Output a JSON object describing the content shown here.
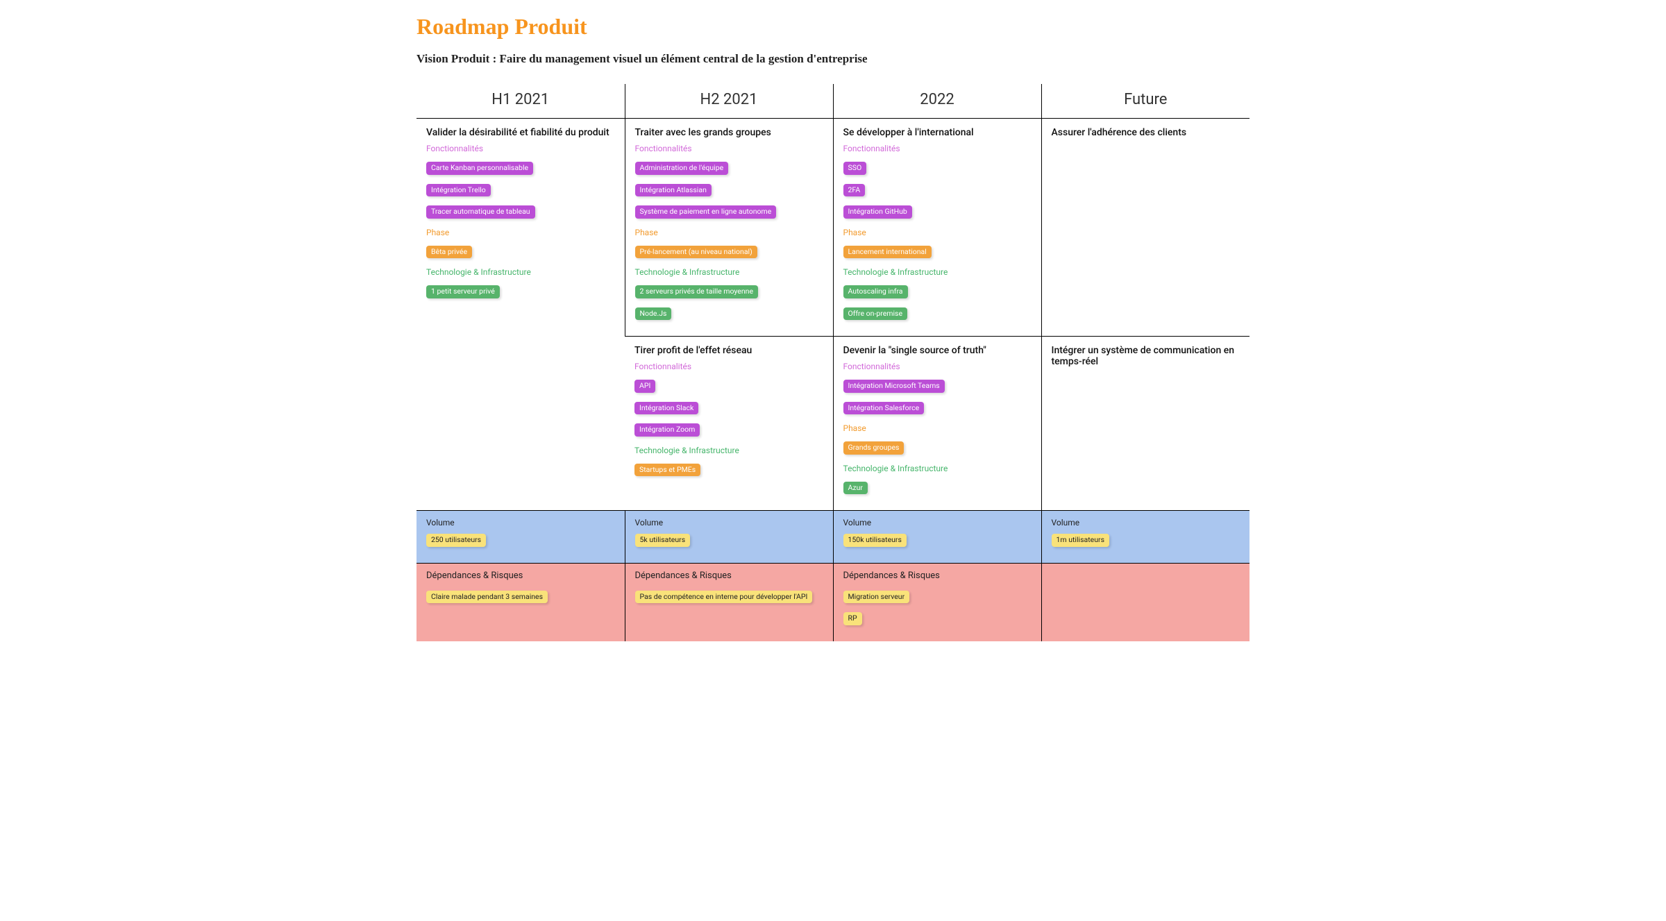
{
  "title": "Roadmap Produit",
  "vision": "Vision Produit : Faire du management visuel un élément central de la gestion d'entreprise",
  "colors": {
    "title": "#f7941d",
    "section_fonctionnalites": "#d26ad9",
    "section_phase": "#f29b2e",
    "section_tech": "#46b56b",
    "pill_purple": "#bb4ed6",
    "pill_orange": "#f2a23b",
    "pill_green": "#57b36b",
    "pill_yellow": "#f9e27a",
    "row_volume_bg": "#aac6ef",
    "row_deps_bg": "#f5a7a3"
  },
  "columns": [
    "H1 2021",
    "H2 2021",
    "2022",
    "Future"
  ],
  "labels": {
    "fonctionnalites": "Fonctionnalités",
    "phase": "Phase",
    "tech": "Technologie & Infrastructure",
    "volume": "Volume",
    "deps": "Dépendances & Risques"
  },
  "main": {
    "h1_2021": [
      {
        "objective": "Valider la désirabilité et fiabilité du produit",
        "fonctionnalites": [
          "Carte Kanban personnalisable",
          "Intégration Trello",
          "Tracer automatique de tableau"
        ],
        "phase": [
          "Bêta privée"
        ],
        "tech": [
          "1 petit serveur privé"
        ]
      }
    ],
    "h2_2021": [
      {
        "objective": "Traiter avec les grands groupes",
        "fonctionnalites": [
          "Administration de l'équipe",
          "Intégration Atlassian",
          "Système de paiement en ligne autonome"
        ],
        "phase": [
          "Pré-lancement (au niveau national)"
        ],
        "tech": [
          "2 serveurs privés de taille moyenne",
          "Node.Js"
        ]
      },
      {
        "objective": "Tirer profit de l'effet réseau",
        "fonctionnalites": [
          "API",
          "Intégration Slack",
          "Intégration Zoom"
        ],
        "phase": [],
        "tech": [
          "Startups et PMEs"
        ],
        "tech_color": "orange"
      }
    ],
    "y2022": [
      {
        "objective": "Se développer à l'international",
        "fonctionnalites": [
          "SSO",
          "2FA",
          "Intégration GitHub"
        ],
        "phase": [
          "Lancement international"
        ],
        "tech": [
          "Autoscaling infra",
          "Offre on-premise"
        ]
      },
      {
        "objective": "Devenir la \"single source of truth\"",
        "fonctionnalites": [
          "Intégration Microsoft Teams",
          "Intégration Salesforce"
        ],
        "phase": [
          "Grands groupes"
        ],
        "tech": [
          "Azur"
        ]
      }
    ],
    "future": [
      {
        "objective": "Assurer l'adhérence des clients"
      },
      {
        "objective": "Intégrer un système de communication en temps-réel"
      }
    ]
  },
  "volume": {
    "h1_2021": "250 utilisateurs",
    "h2_2021": "5k utilisateurs",
    "y2022": "150k utilisateurs",
    "future": "1m utilisateurs"
  },
  "deps": {
    "h1_2021": [
      "Claire malade pendant 3 semaines"
    ],
    "h2_2021": [
      "Pas de compétence en interne pour développer l'API"
    ],
    "y2022": [
      "Migration serveur",
      "RP"
    ],
    "future": []
  }
}
